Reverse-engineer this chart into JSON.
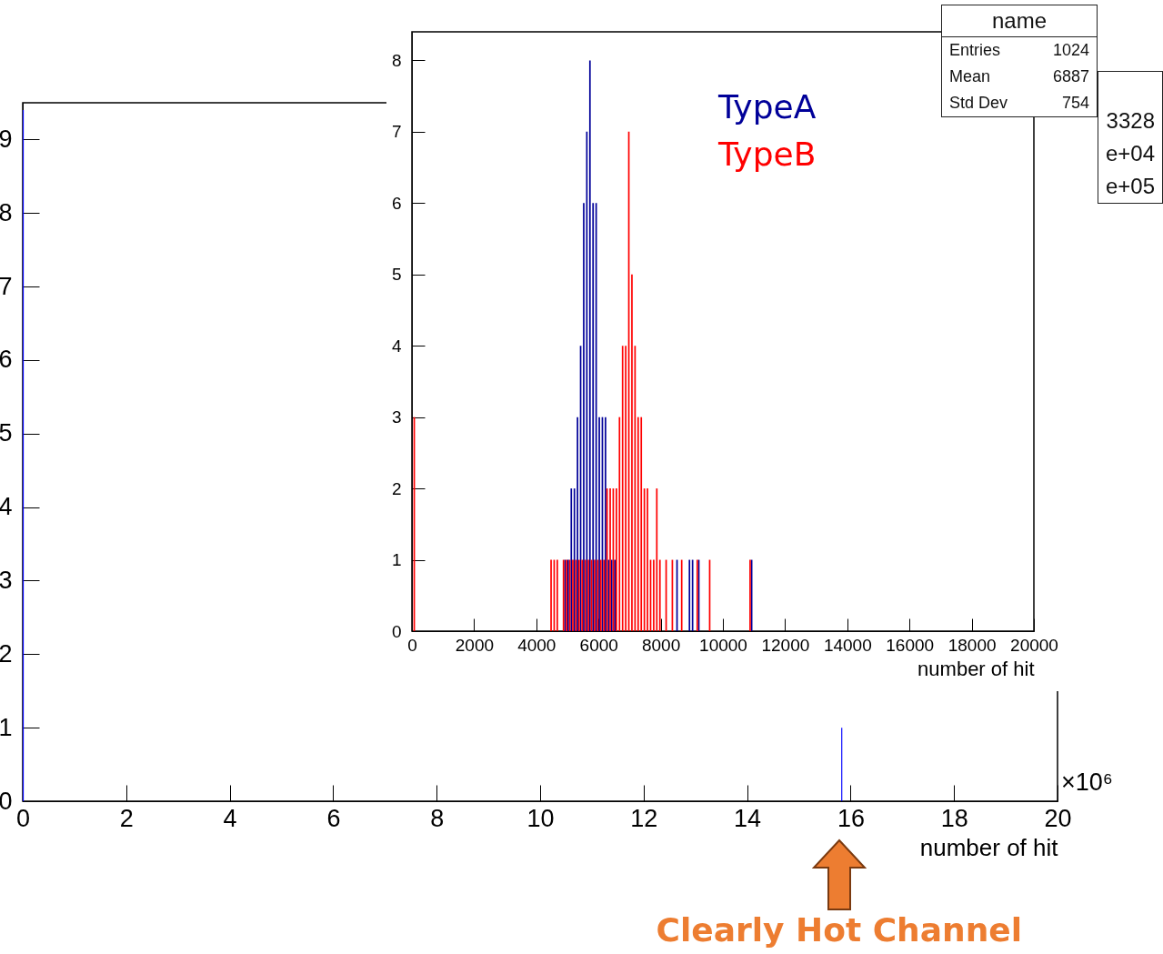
{
  "chart_data": [
    {
      "type": "histogram",
      "xlabel": "number of hit",
      "bins": [
        0,
        0.02,
        15.82,
        15.84
      ],
      "series": [
        {
          "color": "#0000ff",
          "values": [
            9.4,
            0,
            1
          ]
        }
      ],
      "xlim": [
        0,
        20
      ],
      "xticks": [
        0,
        2,
        4,
        6,
        8,
        10,
        12,
        14,
        16,
        18,
        20
      ],
      "ylim": [
        0,
        9.5
      ],
      "yticks": [
        0,
        1,
        2,
        3,
        4,
        5,
        6,
        7,
        8,
        9
      ],
      "annotations": [
        "×10⁶",
        "Clearly Hot Channel",
        "3328",
        "e+04",
        "e+05"
      ]
    },
    {
      "type": "histogram",
      "xlabel": "number of hit",
      "legend": "top",
      "bins": [
        0,
        100,
        200,
        300,
        400,
        500,
        600,
        700,
        800,
        900,
        1000,
        1100,
        1200,
        1300,
        1400,
        1500,
        1600,
        1700,
        1800,
        1900,
        2000,
        2100,
        2200,
        2300,
        2400,
        2500,
        2600,
        2700,
        2800,
        2900,
        3000,
        3100,
        3200,
        3300,
        3400,
        3500,
        3600,
        3700,
        3800,
        3900,
        4000,
        4100,
        4200,
        4300,
        4400,
        4500,
        4600,
        4700,
        4800,
        4900,
        5000,
        5100,
        5200,
        5300,
        5400,
        5500,
        5600,
        5700,
        5800,
        5900,
        6000,
        6100,
        6200,
        6300,
        6400,
        6500,
        6600,
        6700,
        6800,
        6900,
        7000,
        7100,
        7200,
        7300,
        7400,
        7500,
        7600,
        7700,
        7800,
        7900,
        8000,
        8100,
        8200,
        8300,
        8400,
        8500,
        8600,
        8700,
        8800,
        8900,
        9000,
        9100,
        9200,
        9300,
        9400,
        9500,
        9600,
        9700,
        9800,
        9900,
        10000,
        10100,
        10200,
        10300,
        10400,
        10500,
        10600,
        10700,
        10800,
        10900,
        11000
      ],
      "series": [
        {
          "name": "TypeA",
          "color": "#000099",
          "values": [
            0,
            0,
            0,
            0,
            0,
            0,
            0,
            0,
            0,
            0,
            0,
            0,
            0,
            0,
            0,
            0,
            0,
            0,
            0,
            0,
            0,
            0,
            0,
            0,
            0,
            0,
            0,
            0,
            0,
            0,
            0,
            0,
            0,
            0,
            0,
            0,
            0,
            0,
            0,
            0,
            0,
            0,
            0,
            0,
            0,
            0,
            0,
            0,
            0,
            1,
            1,
            2,
            2,
            3,
            4,
            6,
            7,
            8,
            6,
            6,
            3,
            3,
            3,
            1,
            1,
            1,
            0,
            0,
            0,
            0,
            0,
            0,
            0,
            0,
            0,
            0,
            0,
            0,
            0,
            0,
            0,
            0,
            0,
            0,
            0,
            1,
            0,
            0,
            0,
            1,
            1,
            0,
            1,
            0,
            0,
            0,
            0,
            0,
            0,
            0,
            0,
            0,
            0,
            0,
            0,
            0,
            0,
            0,
            0,
            1
          ]
        },
        {
          "name": "TypeB",
          "color": "#ff0000",
          "values": [
            3,
            0,
            0,
            0,
            0,
            0,
            0,
            0,
            0,
            0,
            0,
            0,
            0,
            0,
            0,
            0,
            0,
            0,
            0,
            0,
            0,
            0,
            0,
            0,
            0,
            0,
            0,
            0,
            0,
            0,
            0,
            0,
            0,
            0,
            0,
            0,
            0,
            0,
            0,
            0,
            0,
            0,
            0,
            0,
            1,
            1,
            1,
            0,
            1,
            1,
            1,
            1,
            1,
            1,
            1,
            1,
            1,
            1,
            1,
            1,
            1,
            1,
            2,
            2,
            2,
            2,
            3,
            4,
            4,
            7,
            5,
            4,
            3,
            3,
            2,
            2,
            1,
            1,
            2,
            1,
            0,
            1,
            0,
            1,
            0,
            0,
            1,
            0,
            0,
            0,
            0,
            1,
            0,
            0,
            0,
            1,
            0,
            0,
            0,
            0,
            0,
            0,
            0,
            0,
            0,
            0,
            0,
            0,
            1,
            0
          ]
        }
      ],
      "xlim": [
        0,
        20000
      ],
      "xticks": [
        0,
        2000,
        4000,
        6000,
        8000,
        10000,
        12000,
        14000,
        16000,
        18000,
        20000
      ],
      "ylim": [
        0,
        8.4
      ],
      "yticks": [
        0,
        1,
        2,
        3,
        4,
        5,
        6,
        7,
        8
      ],
      "annotations": [
        "name",
        "Entries 1024",
        "Mean 6887",
        "Std Dev 754"
      ]
    }
  ]
}
